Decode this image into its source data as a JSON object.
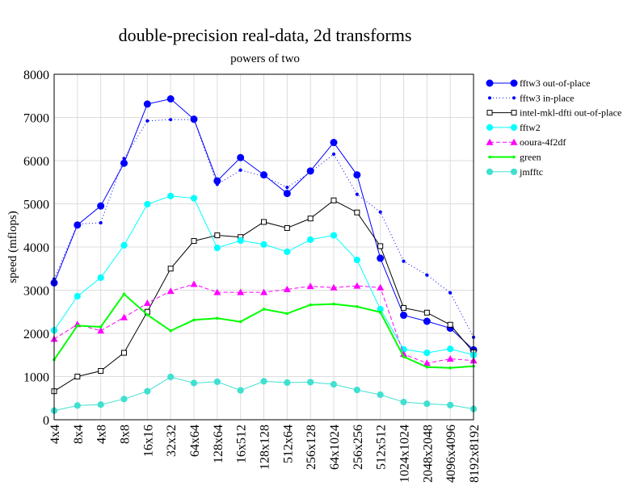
{
  "chart_data": {
    "type": "line",
    "title": "double-precision real-data, 2d transforms",
    "subtitle": "powers of two",
    "xlabel": "",
    "ylabel": "speed (mflops)",
    "ylim": [
      0,
      8000
    ],
    "yticks": [
      0,
      1000,
      2000,
      3000,
      4000,
      5000,
      6000,
      7000,
      8000
    ],
    "grid": true,
    "legend_position": "right",
    "categories": [
      "4x4",
      "8x4",
      "4x8",
      "8x8",
      "16x16",
      "32x32",
      "64x64",
      "128x64",
      "16x512",
      "128x128",
      "512x64",
      "256x128",
      "64x1024",
      "256x256",
      "512x512",
      "1024x1024",
      "2048x2048",
      "4096x4096",
      "8192x8192"
    ],
    "series": [
      {
        "name": "fftw3 out-of-place",
        "color": "#0000ff",
        "dash": "",
        "marker": "circle-large",
        "values": [
          3170,
          4510,
          4950,
          5940,
          7310,
          7430,
          6960,
          5530,
          6070,
          5670,
          5240,
          5760,
          6420,
          5670,
          3740,
          2420,
          2280,
          2120,
          1620
        ]
      },
      {
        "name": "fftw3 in-place",
        "color": "#0000ff",
        "dash": "1,3",
        "marker": "circle-small",
        "values": [
          3260,
          4530,
          4560,
          6050,
          6920,
          6950,
          6950,
          5450,
          5780,
          5640,
          5380,
          5730,
          6150,
          5220,
          4810,
          3670,
          3350,
          2940,
          1910
        ]
      },
      {
        "name": "intel-mkl-dfti out-of-place",
        "color": "#000000",
        "dash": "",
        "marker": "square-open",
        "values": [
          660,
          1000,
          1130,
          1550,
          2500,
          3500,
          4140,
          4270,
          4230,
          4580,
          4440,
          4660,
          5080,
          4800,
          4020,
          2590,
          2480,
          2200,
          1560
        ]
      },
      {
        "name": "fftw2",
        "color": "#00ffff",
        "dash": "",
        "marker": "circle-medium",
        "values": [
          2070,
          2860,
          3290,
          4040,
          4990,
          5180,
          5130,
          3980,
          4150,
          4060,
          3890,
          4170,
          4270,
          3700,
          2560,
          1630,
          1550,
          1640,
          1500
        ]
      },
      {
        "name": "ooura-4f2df",
        "color": "#ff00ff",
        "dash": "5,3",
        "marker": "triangle",
        "values": [
          1870,
          2210,
          2060,
          2370,
          2700,
          2980,
          3140,
          2950,
          2950,
          2950,
          3020,
          3090,
          3060,
          3100,
          3060,
          1520,
          1310,
          1410,
          1370
        ]
      },
      {
        "name": "green",
        "color": "#00ff00",
        "dash": "",
        "marker": "dot-small",
        "thick": true,
        "values": [
          1390,
          2180,
          2150,
          2910,
          2430,
          2060,
          2310,
          2350,
          2270,
          2560,
          2460,
          2660,
          2680,
          2620,
          2490,
          1460,
          1220,
          1200,
          1240
        ]
      },
      {
        "name": "jmfftc",
        "color": "#40e0d0",
        "dash": "",
        "marker": "circle-medium",
        "values": [
          210,
          330,
          350,
          480,
          660,
          990,
          850,
          880,
          680,
          890,
          860,
          870,
          820,
          690,
          580,
          410,
          370,
          340,
          250
        ]
      }
    ]
  }
}
